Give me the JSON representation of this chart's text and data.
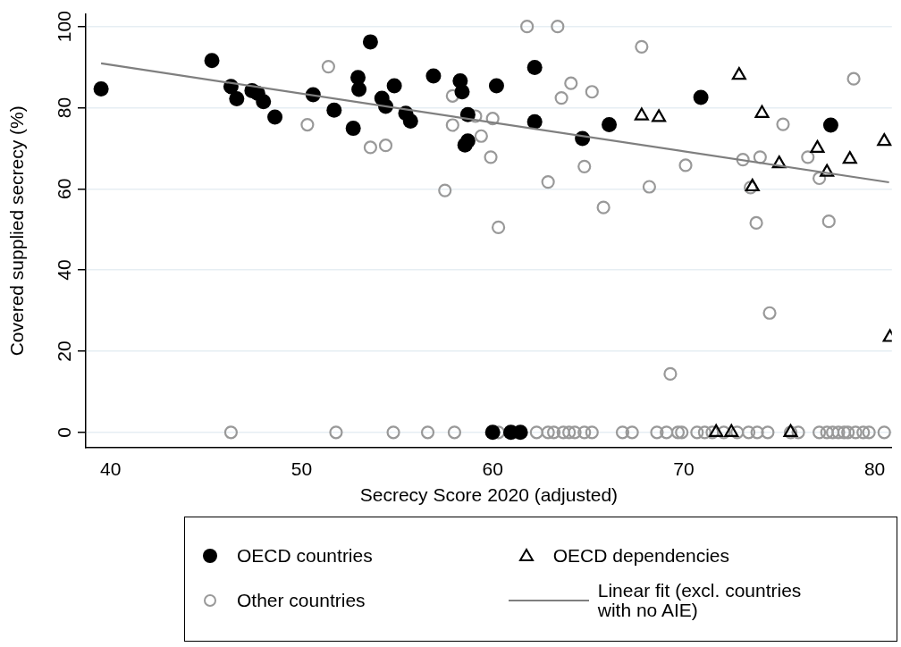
{
  "chart_data": {
    "type": "scatter",
    "xlabel": "Secrecy Score 2020 (adjusted)",
    "ylabel": "Covered supplied secrecy (%)",
    "xlim": [
      38.7,
      80.9
    ],
    "ylim": [
      -3.7,
      103
    ],
    "xticks": [
      40,
      50,
      60,
      70,
      80
    ],
    "yticks": [
      0,
      20,
      40,
      60,
      80,
      100
    ],
    "grid": "y",
    "legend": "bottom",
    "series": [
      {
        "name": "OECD countries",
        "color": "#000000",
        "marker": "circle",
        "x": [
          39.5,
          45.3,
          46.3,
          46.6,
          47.4,
          47.7,
          48.0,
          48.6,
          50.6,
          51.7,
          52.7,
          52.95,
          53.0,
          53.6,
          54.2,
          54.4,
          54.85,
          55.45,
          55.7,
          56.9,
          58.3,
          58.4,
          60.2,
          62.2,
          58.7,
          62.2,
          58.7,
          58.55,
          64.7,
          66.1,
          70.9,
          77.7,
          60.0,
          60.95,
          61.45
        ],
        "values": [
          84.6,
          91.6,
          85.2,
          82.2,
          84.2,
          83.5,
          81.5,
          77.7,
          83.2,
          79.4,
          74.9,
          87.4,
          84.5,
          96.2,
          82.3,
          80.3,
          85.4,
          78.6,
          76.7,
          87.8,
          86.6,
          83.9,
          85.4,
          89.9,
          78.3,
          76.5,
          71.8,
          70.8,
          72.4,
          75.8,
          82.5,
          75.7,
          0,
          0,
          0
        ]
      },
      {
        "name": "OECD dependencies",
        "color": "#000000",
        "marker": "triangle",
        "x": [
          72.9,
          67.8,
          68.7,
          74.1,
          75.0,
          77.0,
          78.7,
          77.5,
          80.5,
          73.6,
          80.8,
          71.7,
          72.5,
          75.6
        ],
        "values": [
          88.0,
          78.0,
          77.6,
          78.6,
          66.2,
          70.0,
          67.3,
          64.1,
          71.7,
          60.5,
          23.4,
          0,
          0,
          0
        ]
      },
      {
        "name": "Other countries",
        "color": "#999999",
        "marker": "circle",
        "x": [
          61.8,
          63.4,
          67.8,
          64.1,
          65.2,
          63.6,
          57.9,
          78.9,
          59.1,
          60.0,
          57.9,
          59.4,
          59.9,
          64.8,
          62.9,
          57.5,
          65.8,
          68.2,
          70.1,
          75.2,
          73.1,
          74.0,
          76.5,
          77.1,
          73.5,
          51.4,
          50.3,
          53.6,
          54.4,
          60.3,
          73.8,
          77.6,
          74.5,
          69.3,
          46.3,
          51.8,
          54.8,
          56.6,
          58.0,
          60.3,
          61.1,
          62.3,
          62.9,
          63.2,
          63.7,
          64.0,
          64.3,
          64.8,
          65.2,
          66.8,
          67.3,
          68.6,
          69.1,
          69.7,
          69.9,
          70.7,
          71.1,
          71.5,
          72.1,
          72.8,
          73.4,
          73.85,
          74.4,
          75.6,
          76.0,
          77.1,
          77.5,
          77.8,
          78.1,
          78.4,
          78.6,
          79.0,
          79.4,
          79.7,
          80.5
        ],
        "values": [
          100,
          100,
          95.0,
          86.0,
          83.9,
          82.4,
          82.9,
          87.1,
          77.9,
          77.3,
          75.7,
          73.0,
          67.8,
          65.5,
          61.7,
          59.6,
          55.4,
          60.5,
          65.8,
          75.9,
          67.2,
          67.8,
          67.8,
          62.6,
          60.3,
          90.1,
          75.8,
          70.2,
          70.7,
          50.5,
          51.6,
          52.0,
          29.4,
          14.4,
          0,
          0,
          0,
          0,
          0,
          0,
          0,
          0,
          0,
          0,
          0,
          0,
          0,
          0,
          0,
          0,
          0,
          0,
          0,
          0,
          0,
          0,
          0,
          0,
          0,
          0,
          0,
          0,
          0,
          0,
          0,
          0,
          0,
          0,
          0,
          0,
          0,
          0,
          0,
          0,
          0
        ]
      },
      {
        "name": "Linear fit (excl. countries with no AIE)",
        "type": "line",
        "color": "#7f7f7f",
        "marker": "none",
        "x": [
          39.5,
          80.75
        ],
        "values": [
          90.9,
          61.6
        ]
      }
    ]
  }
}
